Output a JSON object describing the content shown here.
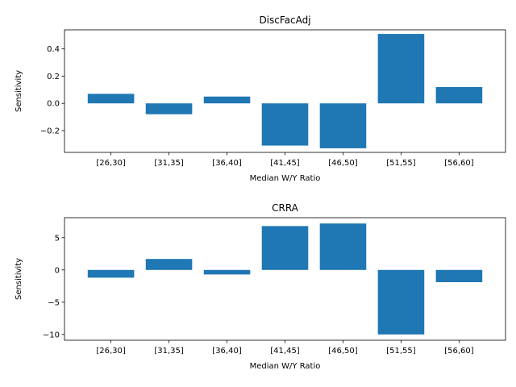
{
  "chart_data": [
    {
      "type": "bar",
      "title": "DiscFacAdj",
      "xlabel": "Median W/Y Ratio",
      "ylabel": "Sensitivity",
      "categories": [
        "[26,30]",
        "[31,35]",
        "[36,40]",
        "[41,45]",
        "[46,50]",
        "[51,55]",
        "[56,60]"
      ],
      "values": [
        0.07,
        -0.08,
        0.05,
        -0.31,
        -0.33,
        0.51,
        0.12
      ],
      "ylim": [
        -0.36,
        0.54
      ],
      "yticks": [
        -0.2,
        0.0,
        0.2,
        0.4
      ],
      "ytick_labels": [
        "−0.2",
        "0.0",
        "0.2",
        "0.4"
      ],
      "bar_color": "#1f77b4",
      "grid": false
    },
    {
      "type": "bar",
      "title": "CRRA",
      "xlabel": "Median W/Y Ratio",
      "ylabel": "Sensitivity",
      "categories": [
        "[26,30]",
        "[31,35]",
        "[36,40]",
        "[41,45]",
        "[46,50]",
        "[51,55]",
        "[56,60]"
      ],
      "values": [
        -1.2,
        1.7,
        -0.7,
        6.8,
        7.2,
        -10.0,
        -1.9
      ],
      "ylim": [
        -10.9,
        8.1
      ],
      "yticks": [
        -10,
        -5,
        0,
        5
      ],
      "ytick_labels": [
        "−10",
        "−5",
        "0",
        "5"
      ],
      "bar_color": "#1f77b4",
      "grid": false
    }
  ]
}
